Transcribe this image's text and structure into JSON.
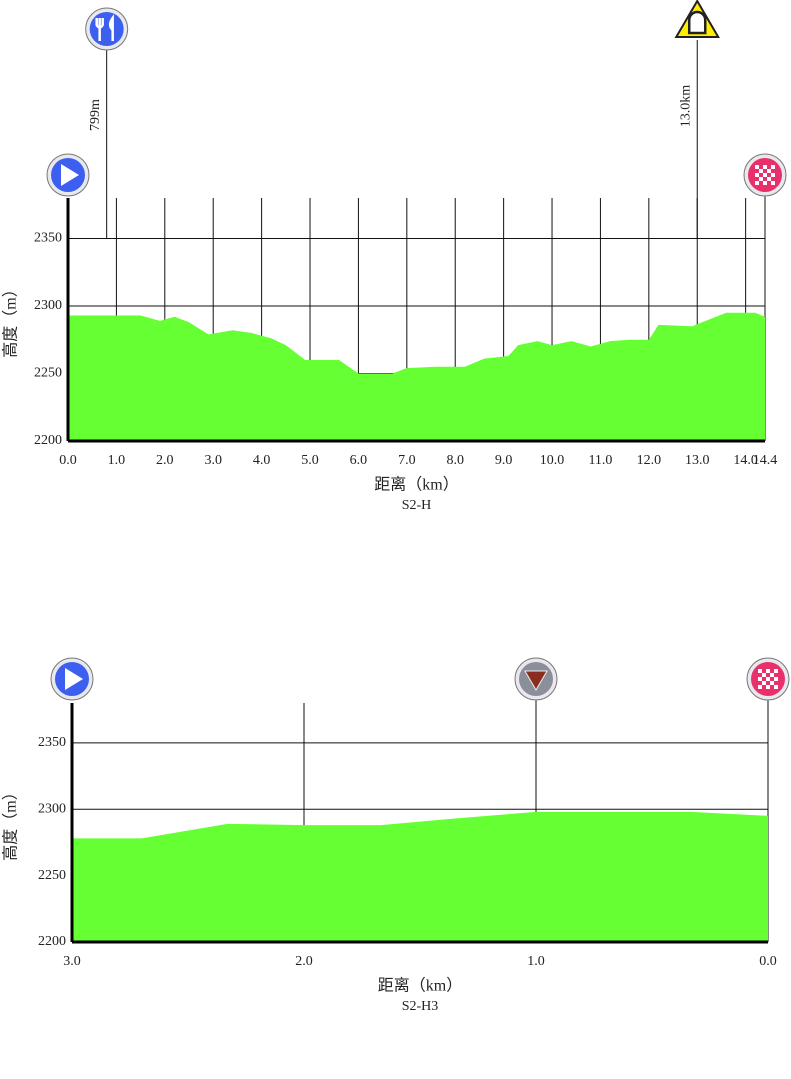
{
  "chart_data": [
    {
      "type": "area",
      "subtitle": "S2-H",
      "xlabel": "距离（km）",
      "ylabel": "高度（m）",
      "color": "#66ff33",
      "x": [
        0,
        1.0,
        1.5,
        1.9,
        2.2,
        2.5,
        2.9,
        3.4,
        3.8,
        4.2,
        4.5,
        4.9,
        5.6,
        6.0,
        6.7,
        7.0,
        7.6,
        8.2,
        8.6,
        9.1,
        9.3,
        9.7,
        10.0,
        10.4,
        10.8,
        11.2,
        11.6,
        12.0,
        12.2,
        12.9,
        13.1,
        13.6,
        14.2,
        14.4
      ],
      "values": [
        2293,
        2293,
        2293,
        2289,
        2292,
        2288,
        2279,
        2282,
        2280,
        2276,
        2271,
        2260,
        2260,
        2250,
        2250,
        2254,
        2255,
        2255,
        2261,
        2263,
        2271,
        2274,
        2271,
        2274,
        2270,
        2274,
        2275,
        2275,
        2286,
        2285,
        2288,
        2295,
        2295,
        2292
      ],
      "xlim": [
        0,
        14.4
      ],
      "xticks": [
        {
          "value": 0,
          "label": "0.0"
        },
        {
          "value": 1,
          "label": "1.0"
        },
        {
          "value": 2,
          "label": "2.0"
        },
        {
          "value": 3,
          "label": "3.0"
        },
        {
          "value": 4,
          "label": "4.0"
        },
        {
          "value": 5,
          "label": "5.0"
        },
        {
          "value": 6,
          "label": "6.0"
        },
        {
          "value": 7,
          "label": "7.0"
        },
        {
          "value": 8,
          "label": "8.0"
        },
        {
          "value": 9,
          "label": "9.0"
        },
        {
          "value": 10,
          "label": "10.0"
        },
        {
          "value": 11,
          "label": "11.0"
        },
        {
          "value": 12,
          "label": "12.0"
        },
        {
          "value": 13,
          "label": "13.0"
        },
        {
          "value": 14,
          "label": "14.0"
        },
        14.4
      ],
      "ylim": [
        2200,
        2380
      ],
      "yticks": [
        2200,
        2250,
        2300,
        2350
      ],
      "grid": true,
      "markers": [
        {
          "x": 0.799,
          "label": "799m",
          "icon": "feed"
        },
        {
          "x": 13.0,
          "label": "13.0km",
          "icon": "tunnel"
        }
      ]
    },
    {
      "type": "area",
      "subtitle": "S2-H3",
      "xlabel": "距离（km）",
      "ylabel": "高度（m）",
      "color": "#66ff33",
      "x": [
        3.0,
        2.7,
        2.33,
        2.0,
        1.67,
        1.35,
        1.0,
        0.33,
        0.0
      ],
      "values": [
        2278,
        2278,
        2289,
        2288,
        2288,
        2293,
        2298,
        2298,
        2295
      ],
      "xlim": [
        3.0,
        0.0
      ],
      "xticks": [
        {
          "value": 3,
          "label": "3.0"
        },
        {
          "value": 2,
          "label": "2.0"
        },
        {
          "value": 1,
          "label": "1.0"
        },
        {
          "value": 0,
          "label": "0.0"
        }
      ],
      "ylim": [
        2200,
        2380
      ],
      "yticks": [
        2200,
        2250,
        2300,
        2350
      ],
      "grid": true,
      "markers": [
        {
          "x": 1.0,
          "icon": "descent"
        }
      ]
    }
  ]
}
